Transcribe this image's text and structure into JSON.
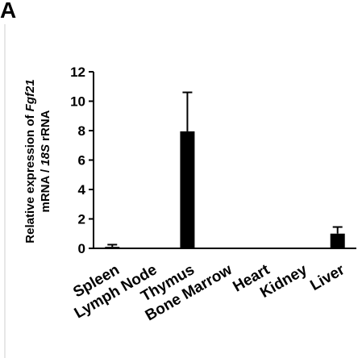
{
  "panel_label": "A",
  "chart_data": {
    "type": "bar",
    "ylabel_line1_prefix": "Relative expression of ",
    "ylabel_line1_gene": "Fgf21",
    "ylabel_line2_prefix": "mRNA / ",
    "ylabel_line2_gene": "18S",
    "ylabel_line2_suffix": " rRNA",
    "xlabel": "",
    "categories": [
      "Spleen",
      "Lymph Node",
      "Thymus",
      "Bone Marrow",
      "Heart",
      "Kidney",
      "Liver"
    ],
    "values": [
      0.1,
      0.02,
      7.95,
      0.02,
      0.04,
      0.04,
      1.0
    ],
    "errors": [
      0.15,
      0,
      2.65,
      0,
      0,
      0,
      0.45
    ],
    "ylim": [
      0,
      12
    ],
    "yticks": [
      0,
      2,
      4,
      6,
      8,
      10,
      12
    ],
    "grid": false,
    "bar_color": "#000000"
  }
}
